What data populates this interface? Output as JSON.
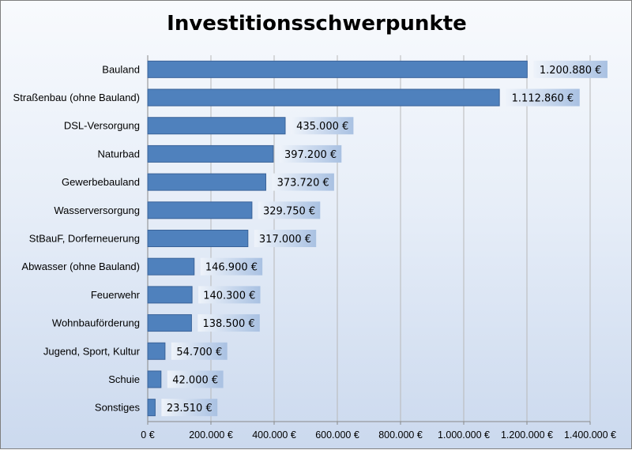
{
  "chart_data": {
    "type": "bar",
    "orientation": "horizontal",
    "title": "Investitionsschwerpunkte",
    "xlabel": "",
    "ylabel": "",
    "categories": [
      "Bauland",
      "Straßenbau (ohne Bauland)",
      "DSL-Versorgung",
      "Naturbad",
      "Gewerbebauland",
      "Wasserversorgung",
      "StBauF, Dorferneuerung",
      "Abwasser (ohne Bauland)",
      "Feuerwehr",
      "Wohnbauförderung",
      "Jugend, Sport, Kultur",
      "Schuie",
      "Sonstiges"
    ],
    "values": [
      1200880,
      1112860,
      435000,
      397200,
      373720,
      329750,
      317000,
      146900,
      140300,
      138500,
      54700,
      42000,
      23510
    ],
    "data_labels": [
      "1.200.880 €",
      "1.112.860 €",
      "435.000 €",
      "397.200 €",
      "373.720 €",
      "329.750 €",
      "317.000 €",
      "146.900 €",
      "140.300 €",
      "138.500 €",
      "54.700 €",
      "42.000 €",
      "23.510 €"
    ],
    "xlim": [
      0,
      1400000
    ],
    "x_ticks": [
      0,
      200000,
      400000,
      600000,
      800000,
      1000000,
      1200000,
      1400000
    ],
    "x_tick_labels": [
      "0 €",
      "200.000 €",
      "400.000 €",
      "600.000 €",
      "800.000 €",
      "1.000.000 €",
      "1.200.000 €",
      "1.400.000 €"
    ],
    "grid": "vertical",
    "legend": "none",
    "colors": {
      "bar": "#4f81bd",
      "bar_border": "#3a6399",
      "grid": "#b8b8b8",
      "label_box_light": "#eef3fa",
      "label_box_dark": "#a9c1e2"
    }
  }
}
